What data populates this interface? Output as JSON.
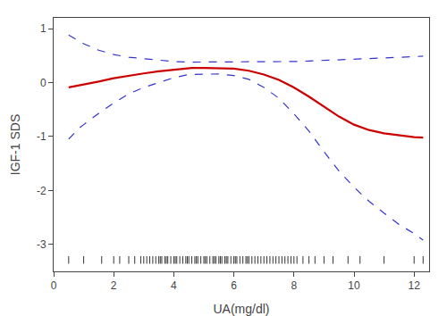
{
  "chart_data": {
    "type": "line",
    "xlabel": "UA(mg/dl)",
    "ylabel": "IGF-1 SDS",
    "xlim": [
      0,
      12.5
    ],
    "ylim": [
      -3.5,
      1.2
    ],
    "xticks": [
      0,
      2,
      4,
      6,
      8,
      10,
      12
    ],
    "yticks": [
      -3,
      -2,
      -1,
      0,
      1
    ],
    "grid": false,
    "background_color": "#ffffff",
    "series": [
      {
        "color": "#3333CC",
        "line_style": "dashed",
        "x": [
          0.5,
          0.8,
          1.0,
          1.5,
          2.0,
          2.5,
          3.0,
          3.5,
          4.0,
          4.5,
          5.0,
          5.5,
          6.0,
          6.5,
          7.0,
          7.5,
          8.0,
          8.5,
          9.0,
          9.5,
          10.0,
          10.5,
          11.0,
          11.5,
          12.0,
          12.3
        ],
        "values": [
          0.88,
          0.78,
          0.72,
          0.6,
          0.52,
          0.47,
          0.44,
          0.41,
          0.39,
          0.38,
          0.38,
          0.38,
          0.38,
          0.38,
          0.38,
          0.39,
          0.39,
          0.4,
          0.41,
          0.42,
          0.43,
          0.44,
          0.45,
          0.47,
          0.48,
          0.49
        ]
      },
      {
        "color": "#3333CC",
        "line_style": "dashed",
        "x": [
          0.5,
          0.8,
          1.0,
          1.5,
          2.0,
          2.5,
          3.0,
          3.5,
          4.0,
          4.5,
          5.0,
          5.5,
          6.0,
          6.5,
          7.0,
          7.5,
          8.0,
          8.5,
          9.0,
          9.5,
          10.0,
          10.5,
          11.0,
          11.5,
          12.0,
          12.3
        ],
        "values": [
          -1.05,
          -0.87,
          -0.78,
          -0.57,
          -0.38,
          -0.21,
          -0.09,
          0.0,
          0.09,
          0.15,
          0.16,
          0.16,
          0.13,
          0.06,
          -0.09,
          -0.29,
          -0.58,
          -0.9,
          -1.28,
          -1.64,
          -1.94,
          -2.2,
          -2.42,
          -2.63,
          -2.8,
          -2.92
        ]
      },
      {
        "color": "#CC0000",
        "line_style": "solid",
        "x": [
          0.5,
          1.0,
          1.5,
          2.0,
          2.5,
          3.0,
          3.5,
          4.0,
          4.3,
          4.6,
          5.0,
          5.5,
          6.0,
          6.5,
          7.0,
          7.5,
          8.0,
          8.5,
          9.0,
          9.5,
          10.0,
          10.5,
          11.0,
          11.5,
          12.0,
          12.3
        ],
        "values": [
          -0.09,
          -0.04,
          0.02,
          0.08,
          0.13,
          0.17,
          0.21,
          0.24,
          0.26,
          0.27,
          0.27,
          0.27,
          0.26,
          0.22,
          0.15,
          0.05,
          -0.09,
          -0.26,
          -0.45,
          -0.63,
          -0.78,
          -0.88,
          -0.94,
          -0.98,
          -1.01,
          -1.02
        ]
      }
    ],
    "rug": {
      "color": "#000000",
      "x": [
        0.5,
        1.0,
        1.6,
        2.0,
        2.2,
        2.5,
        2.7,
        2.9,
        3.0,
        3.1,
        3.2,
        3.3,
        3.4,
        3.5,
        3.55,
        3.6,
        3.7,
        3.75,
        3.8,
        3.9,
        4.0,
        4.05,
        4.1,
        4.2,
        4.3,
        4.4,
        4.45,
        4.5,
        4.6,
        4.7,
        4.75,
        4.8,
        4.9,
        5.0,
        5.05,
        5.1,
        5.2,
        5.3,
        5.35,
        5.4,
        5.5,
        5.55,
        5.6,
        5.7,
        5.75,
        5.8,
        5.9,
        6.0,
        6.05,
        6.1,
        6.2,
        6.3,
        6.4,
        6.45,
        6.5,
        6.6,
        6.7,
        6.8,
        6.9,
        7.0,
        7.1,
        7.2,
        7.3,
        7.4,
        7.5,
        7.6,
        7.7,
        7.8,
        7.9,
        8.0,
        8.1,
        8.3,
        8.5,
        8.7,
        9.0,
        9.3,
        9.8,
        10.2,
        11.0,
        12.0,
        12.3
      ]
    }
  }
}
